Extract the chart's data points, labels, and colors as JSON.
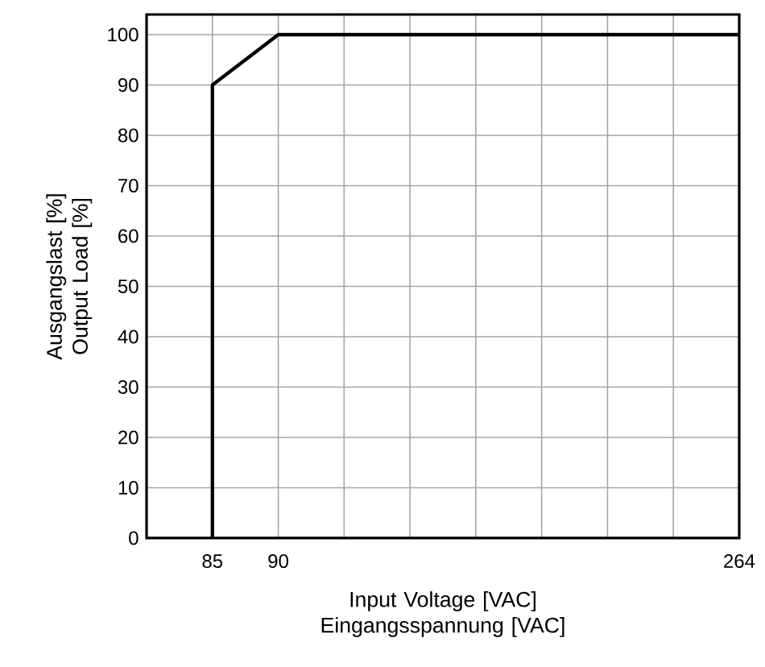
{
  "chart_data": {
    "type": "line",
    "xlabel": "Input Voltage [VAC] Eingangsspannung [VAC]",
    "ylabel": "Ausgangslast [%] Output Load [%]",
    "categories": [
      null,
      "85",
      "90",
      null,
      null,
      null,
      null,
      null,
      null,
      "264"
    ],
    "series": [
      {
        "x": [
          "85",
          "85",
          "90",
          "264"
        ],
        "values": [
          0,
          90,
          100,
          100
        ],
        "color": "#000000"
      }
    ],
    "ylim": [
      0,
      104
    ],
    "yticks": [
      0,
      10,
      20,
      30,
      40,
      50,
      60,
      70,
      80,
      90,
      100
    ],
    "grid": true,
    "marker": "none",
    "line_style": "solid"
  }
}
